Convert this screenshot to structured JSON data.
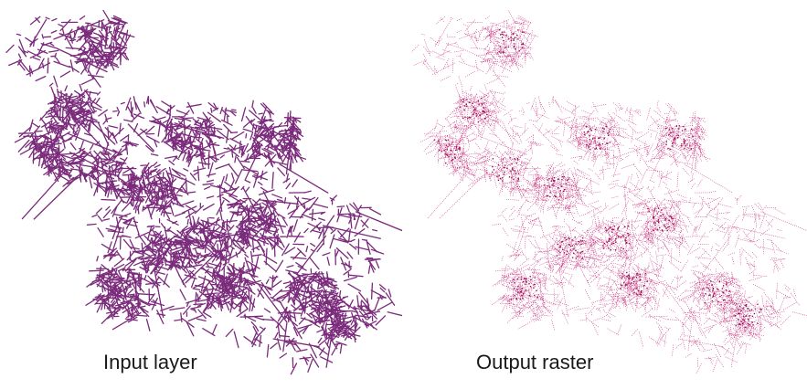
{
  "colors": {
    "input_network": "#7b2b7b",
    "output_raster": "#c2186e",
    "output_raster_dense": "#9a0f55",
    "background": "#ffffff",
    "caption_text": "#1a1a1a"
  },
  "captions": {
    "input_layer": "Input layer",
    "output_raster": "Output raster"
  }
}
